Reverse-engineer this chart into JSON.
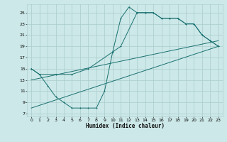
{
  "xlabel": "Humidex (Indice chaleur)",
  "bg_color": "#cce8e8",
  "grid_color": "#aacccc",
  "line_color": "#1a7070",
  "xlim": [
    -0.5,
    23.5
  ],
  "ylim": [
    6.5,
    26.5
  ],
  "xticks": [
    0,
    1,
    2,
    3,
    4,
    5,
    6,
    7,
    8,
    9,
    10,
    11,
    12,
    13,
    14,
    15,
    16,
    17,
    18,
    19,
    20,
    21,
    22,
    23
  ],
  "yticks": [
    7,
    9,
    11,
    13,
    15,
    17,
    19,
    21,
    23,
    25
  ],
  "line1_x": [
    0,
    1,
    2,
    3,
    4,
    5,
    6,
    7,
    8,
    9,
    10,
    11,
    12,
    13,
    14,
    15,
    16,
    17,
    18,
    19,
    20,
    21,
    22,
    23
  ],
  "line1_y": [
    15,
    14,
    12,
    10,
    9,
    8,
    8,
    8,
    8,
    11,
    18,
    24,
    26,
    25,
    25,
    25,
    24,
    24,
    24,
    23,
    23,
    21,
    20,
    19
  ],
  "line2_x": [
    0,
    1,
    3,
    5,
    7,
    10,
    11,
    13,
    14,
    15,
    16,
    17,
    18,
    19,
    20,
    21,
    22,
    23
  ],
  "line2_y": [
    15,
    14,
    14,
    14,
    15,
    18,
    19,
    25,
    25,
    25,
    24,
    24,
    24,
    23,
    23,
    21,
    20,
    19
  ],
  "line3_x": [
    0,
    23
  ],
  "line3_y": [
    13,
    20
  ],
  "line4_x": [
    0,
    23
  ],
  "line4_y": [
    8,
    19
  ]
}
